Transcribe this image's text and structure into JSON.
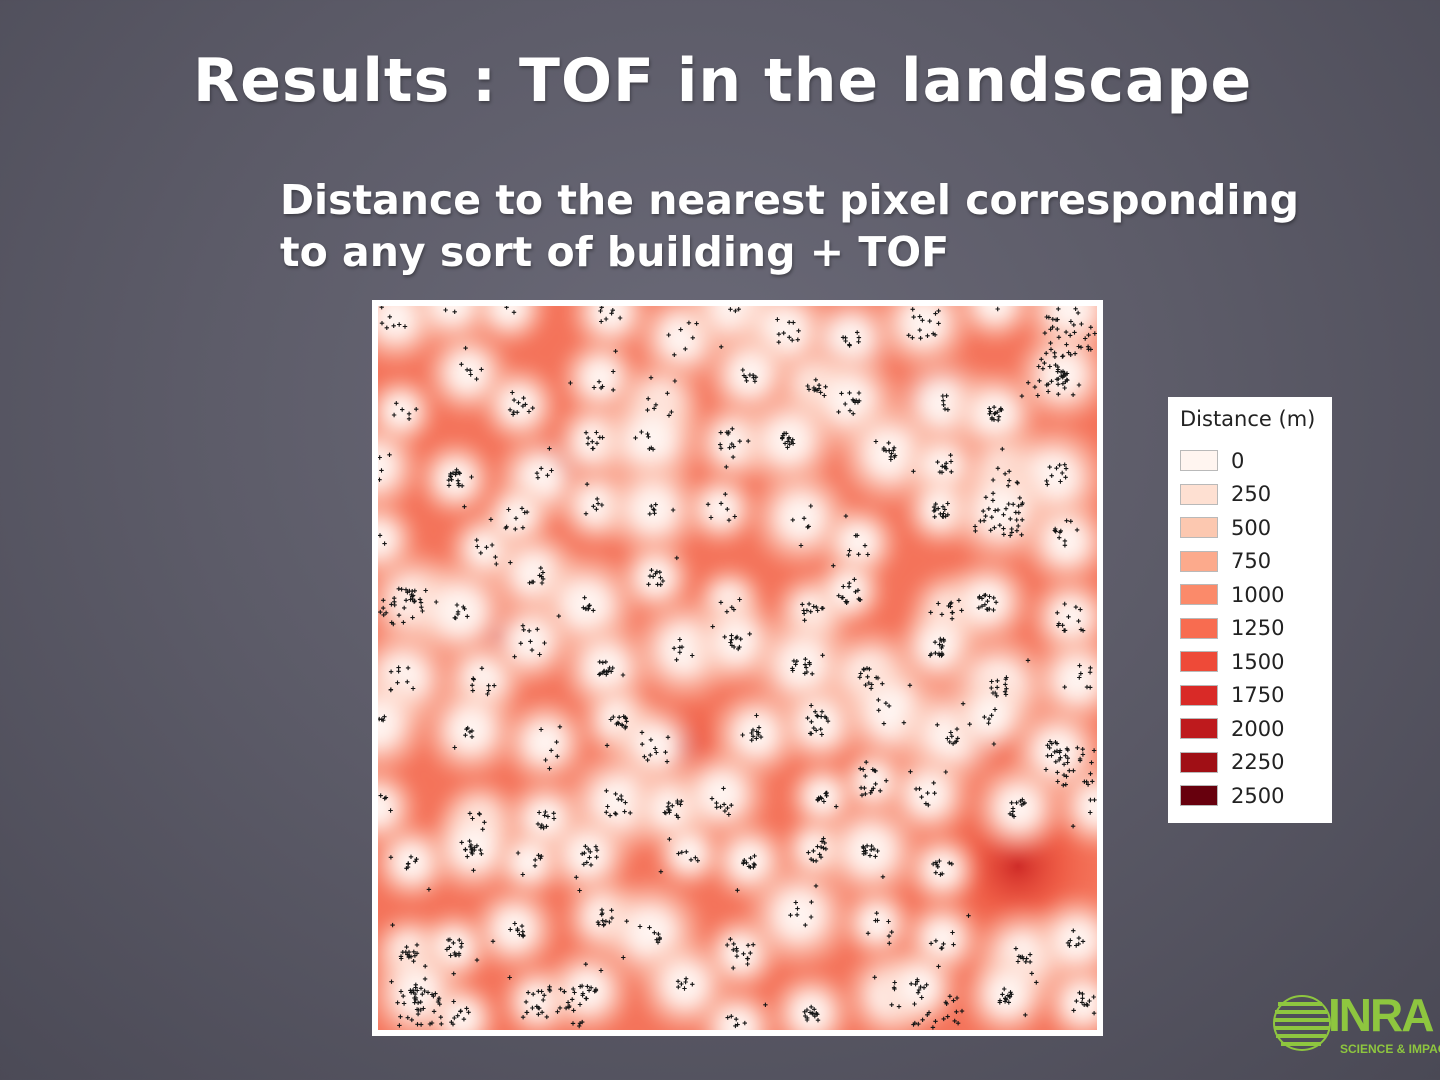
{
  "slide": {
    "title": "Results : TOF in the landscape",
    "subtitle_lines": [
      "Distance to the nearest pixel corresponding",
      "to any sort of building + TOF"
    ]
  },
  "legend": {
    "title": "Distance (m)",
    "items": [
      {
        "label": "0",
        "color": "#fff5f0"
      },
      {
        "label": "250",
        "color": "#fee0d2"
      },
      {
        "label": "500",
        "color": "#fcc8b0"
      },
      {
        "label": "750",
        "color": "#fcaa8c"
      },
      {
        "label": "1000",
        "color": "#fb8a6a"
      },
      {
        "label": "1250",
        "color": "#f86c50"
      },
      {
        "label": "1500",
        "color": "#ee4a38"
      },
      {
        "label": "1750",
        "color": "#d92a27"
      },
      {
        "label": "2000",
        "color": "#be1a1d"
      },
      {
        "label": "2250",
        "color": "#a00f15"
      },
      {
        "label": "2500",
        "color": "#67000d"
      }
    ]
  },
  "map": {
    "building_icon": "cross-icon"
  },
  "logo": {
    "name": "INRA",
    "tagline": "SCIENCE & IMPACT",
    "color": "#8ec63f"
  }
}
